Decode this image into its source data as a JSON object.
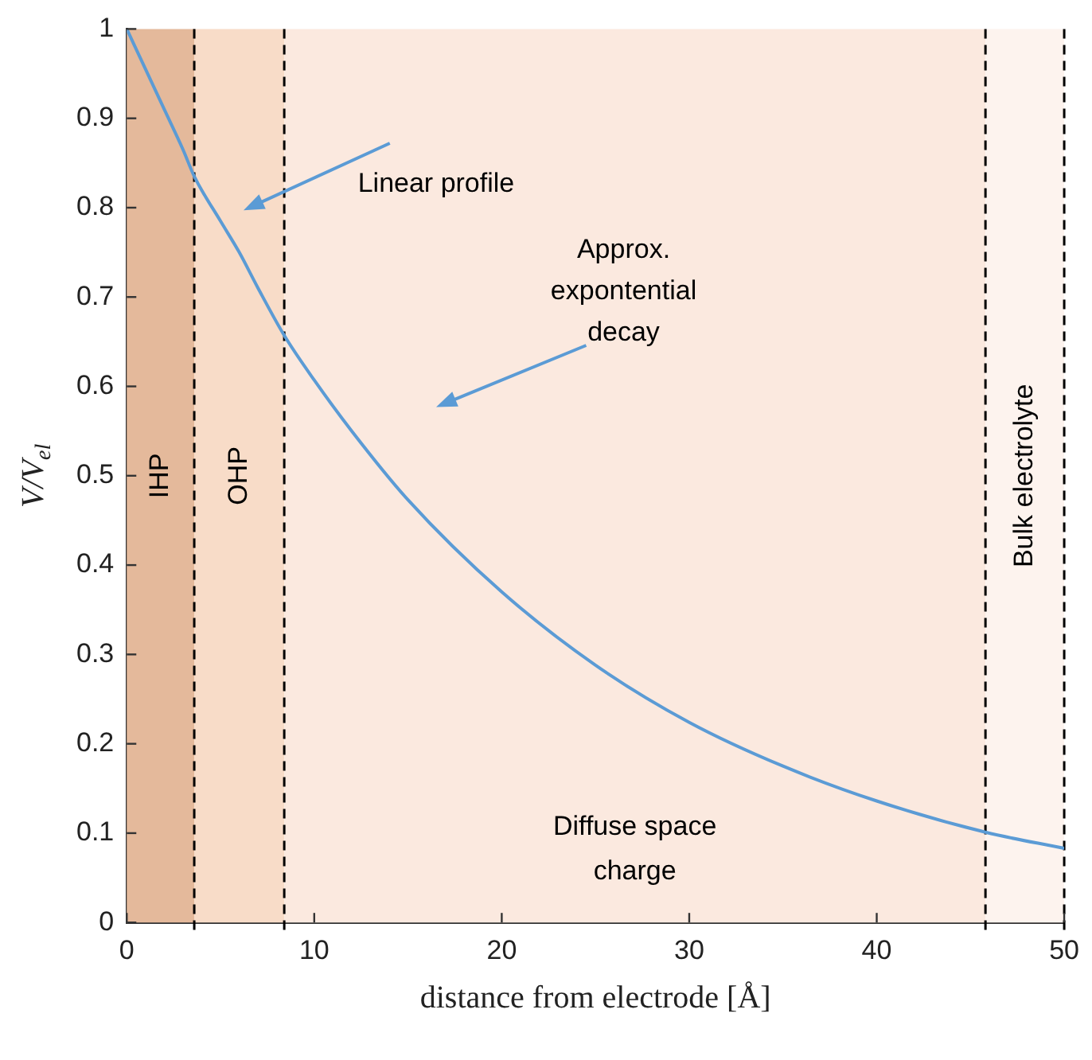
{
  "chart_data": {
    "type": "line",
    "xlabel": "distance from electrode [Å]",
    "ylabel": "V/V$_{el}$",
    "x": [
      0,
      1,
      2,
      3,
      3.6,
      5,
      6,
      7,
      8.4,
      10,
      12,
      15,
      20,
      25,
      30,
      35,
      40,
      45.8,
      50
    ],
    "series": [
      {
        "color": "#5b9bd5",
        "values": [
          1,
          0.955,
          0.91,
          0.865,
          0.835,
          0.785,
          0.75,
          0.71,
          0.657,
          0.607,
          0.55,
          0.473,
          0.37,
          0.288,
          0.224,
          0.175,
          0.136,
          0.101,
          0.083
        ]
      }
    ],
    "xlim": [
      0,
      50
    ],
    "ylim": [
      0,
      1
    ],
    "xticks": [
      0,
      10,
      20,
      30,
      40,
      50
    ],
    "yticks": [
      0,
      0.1,
      0.2,
      0.3,
      0.4,
      0.5,
      0.6,
      0.7,
      0.8,
      0.9,
      1
    ],
    "bands": [
      {
        "axis": "x",
        "from": 0,
        "to": 3.6,
        "label": "IHP",
        "color": "#e4b99b"
      },
      {
        "axis": "x",
        "from": 3.6,
        "to": 8.4,
        "label": "OHP",
        "color": "#f8dcc8"
      },
      {
        "axis": "x",
        "from": 8.4,
        "to": 45.8,
        "label": "Diffuse space charge",
        "color": "#fbe9df"
      },
      {
        "axis": "x",
        "from": 45.8,
        "to": 50,
        "label": "Bulk electrolyte",
        "color": "#fdf3ee"
      }
    ],
    "ref_lines": [
      {
        "axis": "x",
        "value": 3.6,
        "line_style": "dashed",
        "color": "#000000"
      },
      {
        "axis": "x",
        "value": 8.4,
        "line_style": "dashed",
        "color": "#000000"
      },
      {
        "axis": "x",
        "value": 45.8,
        "line_style": "dashed",
        "color": "#000000"
      },
      {
        "axis": "x",
        "value": 50,
        "line_style": "dashed",
        "color": "#000000"
      }
    ],
    "annotations": [
      "Linear profile",
      "Approx. expontential decay"
    ],
    "grid": false,
    "legend": false,
    "marker": "none",
    "line_style": "solid"
  }
}
